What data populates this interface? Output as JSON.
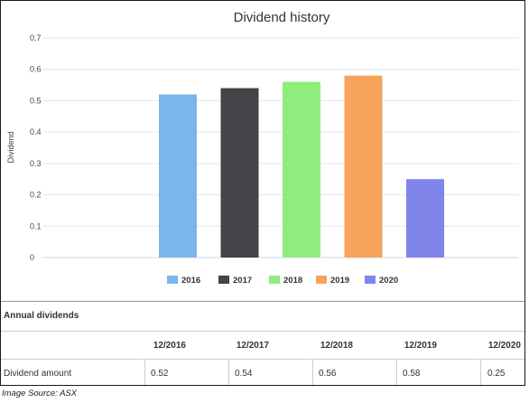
{
  "chart_data": {
    "type": "bar",
    "title": "Dividend history",
    "ylabel": "Dividend",
    "xlabel": "",
    "ylim": [
      0,
      0.7
    ],
    "yticks": [
      "0.7",
      "0.6",
      "0.5",
      "0.4",
      "0.3",
      "0.2",
      "0.1",
      "0"
    ],
    "grid": true,
    "legend_position": "bottom",
    "categories": [
      "2016",
      "2017",
      "2018",
      "2019",
      "2020"
    ],
    "values": [
      0.52,
      0.54,
      0.56,
      0.58,
      0.25
    ],
    "colors": [
      "#7cb5ec",
      "#434348",
      "#90ed7d",
      "#f7a35c",
      "#8085e9"
    ]
  },
  "table": {
    "title": "Annual dividends",
    "headers": [
      "12/2016",
      "12/2017",
      "12/2018",
      "12/2019",
      "12/2020"
    ],
    "row_label": "Dividend amount",
    "values": [
      "0.52",
      "0.54",
      "0.56",
      "0.58",
      "0.25"
    ]
  },
  "source": "Image Source: ASX"
}
